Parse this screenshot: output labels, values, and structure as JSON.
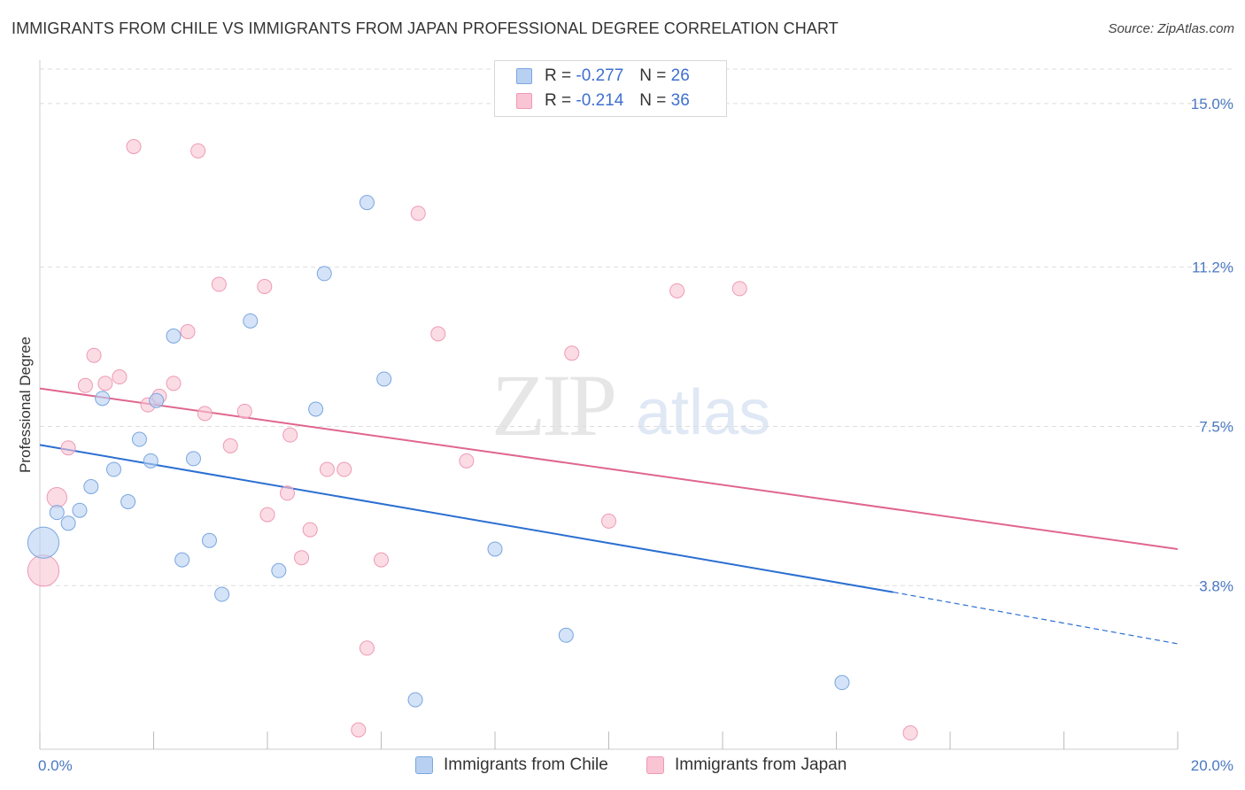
{
  "title": "IMMIGRANTS FROM CHILE VS IMMIGRANTS FROM JAPAN PROFESSIONAL DEGREE CORRELATION CHART",
  "source": "Source: ZipAtlas.com",
  "watermark": {
    "zip": "ZIP",
    "atlas": "atlas"
  },
  "legend": {
    "r_label": "R =",
    "n_label": "N =",
    "rows": [
      {
        "r": "-0.277",
        "n": "26"
      },
      {
        "r": "-0.214",
        "n": "36"
      }
    ]
  },
  "bottom_legend": [
    "Immigrants from Chile",
    "Immigrants from Japan"
  ],
  "colors": {
    "chile_fill": "#b8d0f2",
    "chile_stroke": "#7aa6e0",
    "chile_line": "#2b6fd1",
    "japan_fill": "#f9c4d4",
    "japan_stroke": "#ee9ab4",
    "japan_line": "#e0668e",
    "tick_text": "#4a78c2",
    "grid": "#dddddd"
  },
  "chart_data": {
    "type": "scatter",
    "title": "IMMIGRANTS FROM CHILE VS IMMIGRANTS FROM JAPAN PROFESSIONAL DEGREE CORRELATION CHART",
    "xlabel": "",
    "ylabel": "Professional Degree",
    "xlim": [
      0,
      20
    ],
    "ylim": [
      0,
      15.8
    ],
    "x_tick_labels": [
      "0.0%",
      "20.0%"
    ],
    "y_ticks": [
      3.8,
      7.5,
      11.2,
      15.0
    ],
    "y_tick_labels": [
      "3.8%",
      "7.5%",
      "11.2%",
      "15.0%"
    ],
    "grid": "horizontal dashed",
    "series": [
      {
        "name": "Immigrants from Chile",
        "r": -0.277,
        "n": 26,
        "points": [
          [
            0.0,
            4.8,
            2.2
          ],
          [
            0.3,
            5.5,
            1
          ],
          [
            0.5,
            5.25,
            1
          ],
          [
            0.7,
            5.55,
            1
          ],
          [
            0.9,
            6.1,
            1
          ],
          [
            1.1,
            8.15,
            1
          ],
          [
            1.3,
            6.5,
            1
          ],
          [
            1.55,
            5.75,
            1
          ],
          [
            1.75,
            7.2,
            1
          ],
          [
            1.95,
            6.7,
            1
          ],
          [
            2.05,
            8.1,
            1
          ],
          [
            2.35,
            9.6,
            1
          ],
          [
            2.5,
            4.4,
            1
          ],
          [
            2.7,
            6.75,
            1
          ],
          [
            2.98,
            4.85,
            1
          ],
          [
            3.2,
            3.6,
            1
          ],
          [
            3.7,
            9.95,
            1
          ],
          [
            4.2,
            4.15,
            1
          ],
          [
            4.85,
            7.9,
            1
          ],
          [
            5.0,
            11.05,
            1
          ],
          [
            5.75,
            12.7,
            1
          ],
          [
            6.05,
            8.6,
            1
          ],
          [
            6.6,
            1.15,
            1
          ],
          [
            8.0,
            4.65,
            1
          ],
          [
            9.25,
            2.65,
            1
          ],
          [
            14.1,
            1.55,
            1
          ]
        ],
        "trend": {
          "x0": 0,
          "y0": 7.07,
          "x1": 15.0,
          "y1": 3.65,
          "dash_to_x": 20.0,
          "dash_to_y": 2.45
        }
      },
      {
        "name": "Immigrants from Japan",
        "r": -0.214,
        "n": 36,
        "points": [
          [
            0.0,
            4.15,
            2.2
          ],
          [
            0.3,
            5.85,
            1.4
          ],
          [
            0.5,
            7.0,
            1
          ],
          [
            0.8,
            8.45,
            1
          ],
          [
            0.95,
            9.15,
            1
          ],
          [
            1.15,
            8.5,
            1
          ],
          [
            1.4,
            8.65,
            1
          ],
          [
            1.65,
            14.0,
            1
          ],
          [
            1.9,
            8.0,
            1
          ],
          [
            2.1,
            8.2,
            1
          ],
          [
            2.35,
            8.5,
            1
          ],
          [
            2.6,
            9.7,
            1
          ],
          [
            2.78,
            13.9,
            1
          ],
          [
            2.9,
            7.8,
            1
          ],
          [
            3.15,
            10.8,
            1
          ],
          [
            3.35,
            7.05,
            1
          ],
          [
            3.6,
            7.85,
            1
          ],
          [
            3.95,
            10.75,
            1
          ],
          [
            4.0,
            5.45,
            1
          ],
          [
            4.35,
            5.95,
            1
          ],
          [
            4.4,
            7.3,
            1
          ],
          [
            4.6,
            4.45,
            1
          ],
          [
            4.75,
            5.1,
            1
          ],
          [
            5.05,
            6.5,
            1
          ],
          [
            5.35,
            6.5,
            1
          ],
          [
            5.75,
            2.35,
            1
          ],
          [
            5.6,
            0.45,
            1
          ],
          [
            6.0,
            4.4,
            1
          ],
          [
            6.65,
            12.45,
            1
          ],
          [
            7.0,
            9.65,
            1
          ],
          [
            7.5,
            6.7,
            1
          ],
          [
            9.35,
            9.2,
            1
          ],
          [
            10.0,
            5.3,
            1
          ],
          [
            11.2,
            10.65,
            1
          ],
          [
            12.3,
            10.7,
            1
          ],
          [
            15.3,
            0.38,
            1
          ]
        ],
        "trend": {
          "x0": 0,
          "y0": 8.38,
          "x1": 20.0,
          "y1": 4.65
        }
      }
    ]
  }
}
